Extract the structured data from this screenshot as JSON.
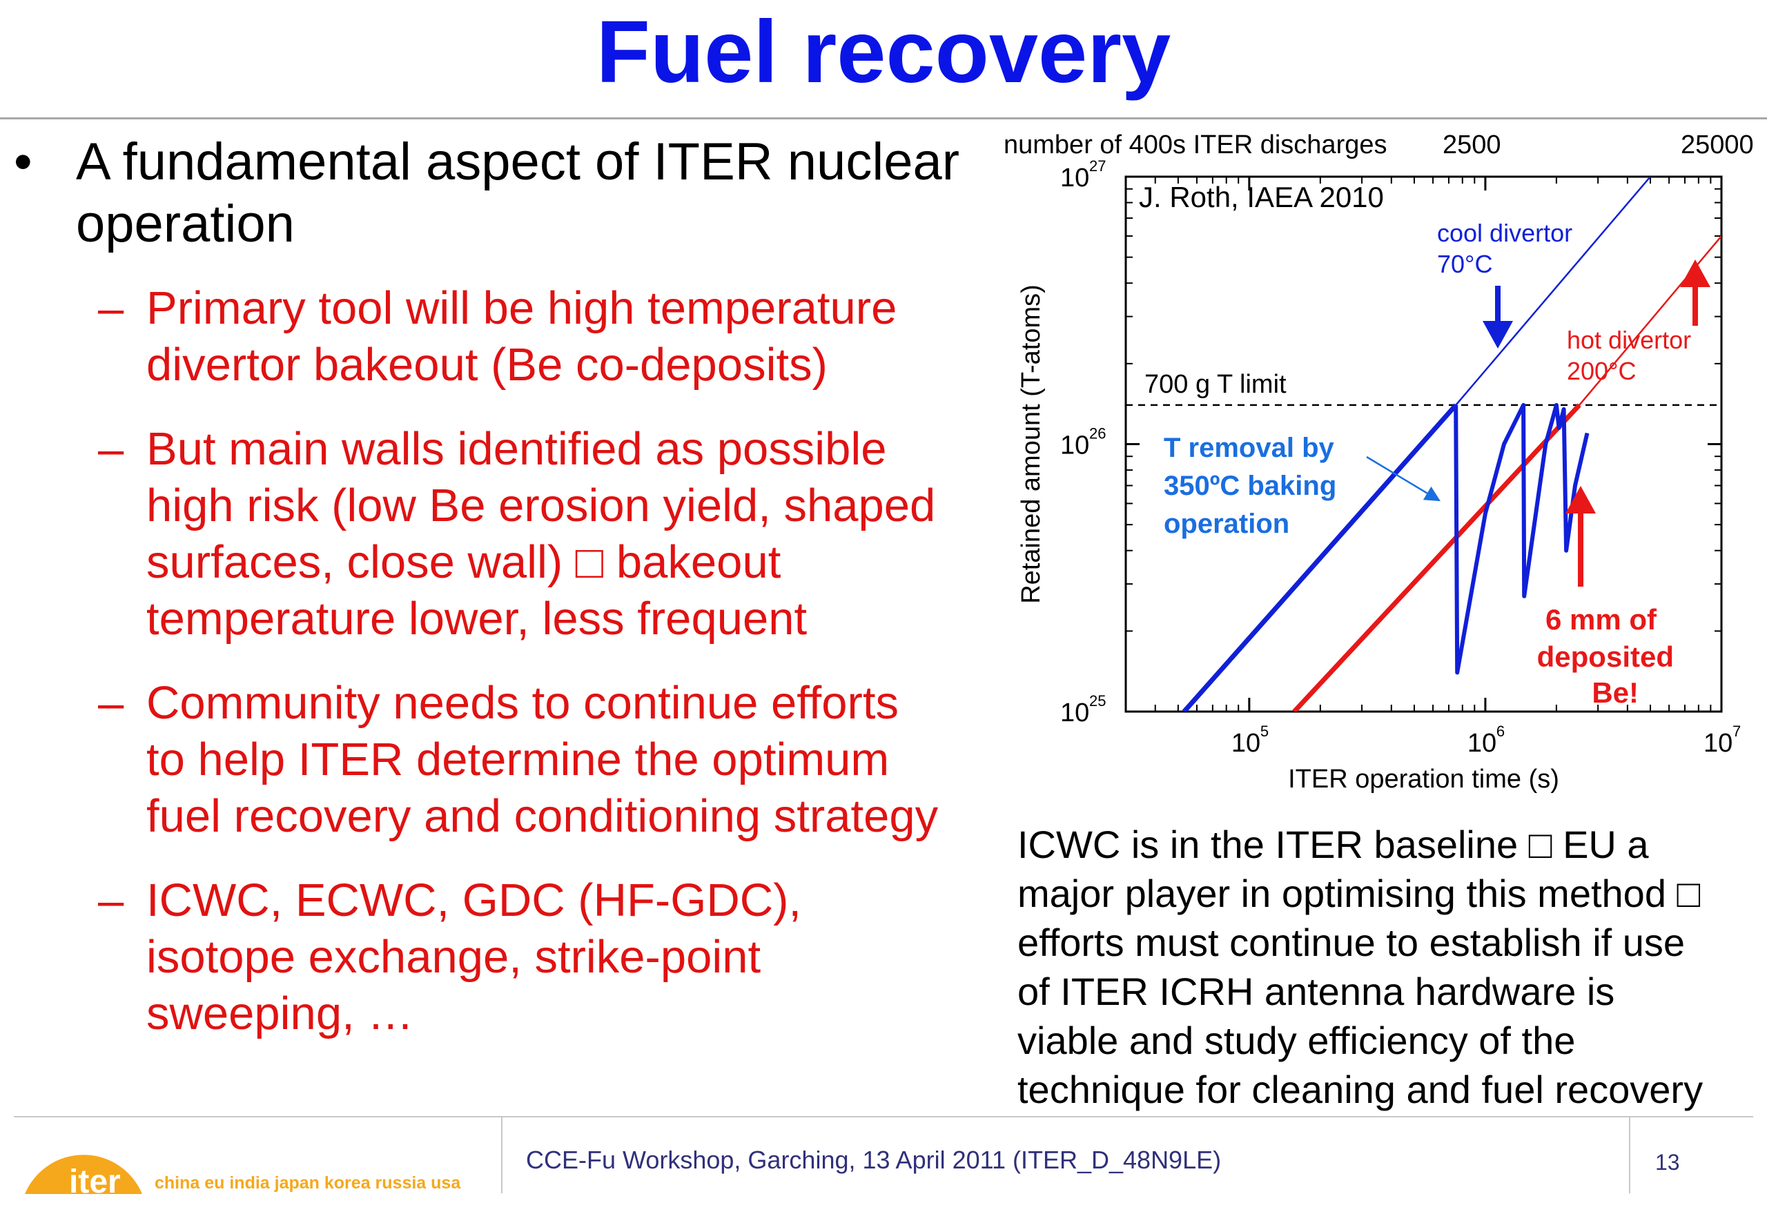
{
  "slide": {
    "title": "Fuel recovery",
    "page_number": "13",
    "footer_text": "CCE-Fu Workshop, Garching, 13 April 2011 (ITER_D_48N9LE)",
    "logo_word": "iter",
    "logo_tagline": "china eu india japan korea russia usa"
  },
  "bullet": {
    "marker": "•",
    "lines": [
      "A fundamental aspect of ITER nuclear",
      "operation"
    ]
  },
  "sub_bullets": [
    {
      "lines": [
        "Primary tool will be high temperature",
        "divertor bakeout (Be co-deposits)"
      ]
    },
    {
      "lines": [
        "But main walls identified as possible",
        "high risk (low Be erosion yield, shaped",
        "surfaces, close wall) □ bakeout",
        "temperature lower, less frequent"
      ]
    },
    {
      "lines": [
        "Community needs to continue efforts",
        "to help ITER determine the optimum",
        "fuel recovery and conditioning strategy"
      ]
    },
    {
      "lines": [
        "ICWC, ECWC, GDC (HF-GDC),",
        "isotope exchange, strike-point",
        "sweeping, …"
      ]
    }
  ],
  "sub_marker": "–",
  "right_text": {
    "lines": [
      "ICWC is in the ITER baseline □ EU a",
      "major player in optimising this method □",
      "efforts must continue to establish if use",
      "of ITER ICRH antenna hardware is",
      "viable and study efficiency of the",
      "technique for cleaning and fuel recovery"
    ]
  },
  "colors": {
    "title": "#0a14e6",
    "sub_text": "#e01212",
    "cool_series": "#1020d8",
    "hot_series": "#e81818",
    "annotation_blue": "#1a6ee0",
    "footer_text": "#30307a",
    "logo": "#f5a81c"
  },
  "chart_data": {
    "type": "line",
    "xscale": "log",
    "yscale": "log",
    "xlim": [
      30000,
      10000000
    ],
    "ylim": [
      1e+25,
      1e+27
    ],
    "xlabel": "ITER operation time (s)",
    "ylabel": "Retained amount (T-atoms)",
    "x_ticks": [
      {
        "base": "10",
        "exp": "5"
      },
      {
        "base": "10",
        "exp": "6"
      },
      {
        "base": "10",
        "exp": "7"
      }
    ],
    "y_ticks": [
      {
        "base": "10",
        "exp": "25"
      },
      {
        "base": "10",
        "exp": "26"
      },
      {
        "base": "10",
        "exp": "27"
      }
    ],
    "top_axis_label": "number of 400s ITER discharges",
    "top_ticks": [
      "2500",
      "25000"
    ],
    "credit": "J. Roth, IAEA 2010",
    "limit_label": "700 g T limit",
    "limit_value": 1.4e+26,
    "series": [
      {
        "name": "cool divertor 70°C",
        "points": [
          [
            53000,
            1e+25
          ],
          [
            750000,
            1.4e+26
          ],
          [
            5000000,
            1e+27
          ]
        ]
      },
      {
        "name": "hot divertor 200°C",
        "points": [
          [
            155000,
            1e+25
          ],
          [
            2500000,
            1.4e+26
          ],
          [
            10000000,
            6e+26
          ]
        ]
      }
    ],
    "baking_cycle": [
      [
        750000,
        1.4e+26
      ],
      [
        760000,
        1.4e+25
      ],
      [
        1000000,
        5.5e+25
      ],
      [
        1200000,
        1e+26
      ],
      [
        1450000,
        1.4e+26
      ],
      [
        1460000,
        2.7e+25
      ],
      [
        1800000,
        1e+26
      ],
      [
        2000000,
        1.4e+26
      ],
      [
        2050000,
        1.15e+26
      ],
      [
        2150000,
        1.35e+26
      ],
      [
        2200000,
        4e+25
      ],
      [
        2400000,
        7e+25
      ],
      [
        2700000,
        1.1e+26
      ]
    ],
    "annotations": {
      "cool_label": [
        "cool divertor",
        "70°C"
      ],
      "hot_label": [
        "hot divertor",
        "200°C"
      ],
      "baking_label": [
        "T  removal  by",
        "350ºC   baking",
        "operation"
      ],
      "deposit_label": [
        "6 mm of",
        "deposited",
        "Be!"
      ]
    }
  }
}
